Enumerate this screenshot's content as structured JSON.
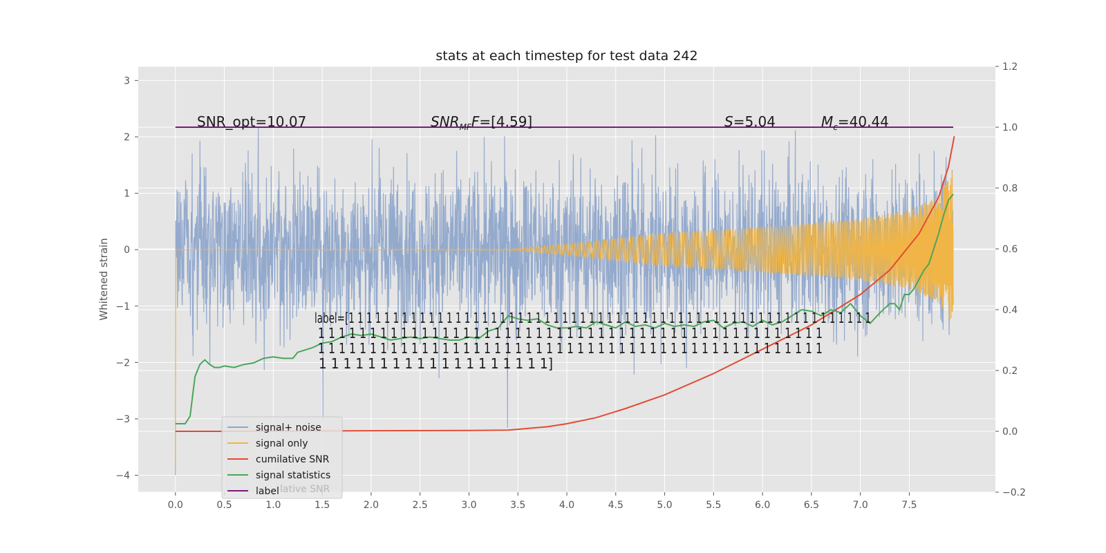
{
  "chart_data": {
    "type": "line",
    "title": "stats at each timestep for test data 242",
    "ylabel": "Whitened strain",
    "xlim": [
      -0.38,
      8.38
    ],
    "ylim": [
      -4.3,
      3.25
    ],
    "y2lim": [
      -0.2,
      1.2
    ],
    "x_ticks": [
      "0.0",
      "0.5",
      "1.0",
      "1.5",
      "2.0",
      "2.5",
      "3.0",
      "3.5",
      "4.0",
      "4.5",
      "5.0",
      "5.5",
      "6.0",
      "6.5",
      "7.0",
      "7.5"
    ],
    "y_ticks": [
      "3",
      "2",
      "1",
      "0",
      "−1",
      "−2",
      "−3",
      "−4"
    ],
    "y2_ticks": [
      "1.2",
      "1.0",
      "0.8",
      "0.6",
      "0.4",
      "0.2",
      "0.0",
      "−0.2"
    ],
    "grid": true,
    "legend_position": "lower-left",
    "colors": {
      "plot_background": "#e5e5e5",
      "grid": "#ffffff",
      "noise": "#8fa6cb",
      "signal": "#f0b546",
      "cumulative_snr": "#e24a33",
      "statistics": "#4aa55a",
      "label": "#7a1a7a"
    },
    "annotations": {
      "snr_opt": "SNR_opt=10.07",
      "snr_mf_name": "SNR",
      "snr_mf_sub": "MF",
      "snr_mf_value": "=[4.59]",
      "s_name": "S",
      "s_value": "=5.04",
      "mc_name": "M",
      "mc_sub": "c",
      "mc_value": "=40.44"
    },
    "label_text": [
      "label=[1 1 1 1 1 1 1 1 1 1 1 1 1 1 1 1 1 1 1 1 1 1 1 1 1 1 1 1 1 1 1 1 1 1 1 1 1 1 1 1 1 1 1 1 1 1 1 1 1 1 1 1 1 1 1 1 1 1 1",
      " 1 1 1 1 1 1 1 1 1 1 1 1 1 1 1 1 1 1 1 1 1 1 1 1 1 1 1 1 1 1 1 1 1 1 1 1 1 1 1 1 1 1 1 1 1 1 1 1 1",
      " 1 1 1 1 1 1 1 1 1 1 1 1 1 1 1 1 1 1 1 1 1 1 1 1 1 1 1 1 1 1 1 1 1 1 1 1 1 1 1 1 1 1 1 1 1 1 1 1 1",
      " 1 1 1 1 1 1 1 1 1 1 1 1 1 1 1 1 1 1 1]"
    ],
    "series": [
      {
        "name": "signal+ noise",
        "axis": "left",
        "note": "whitened noisy strain, amplitude about ±1.5 with spikes to ±2.9",
        "y_range": [
          -4.05,
          2.9
        ]
      },
      {
        "name": "signal only",
        "axis": "left",
        "note": "chirp with growing amplitude",
        "envelope": {
          "x": [
            0,
            3.4,
            4.0,
            5.0,
            6.0,
            7.0,
            7.5,
            7.8,
            7.95
          ],
          "y": [
            0,
            0.01,
            0.1,
            0.3,
            0.4,
            0.55,
            0.7,
            0.95,
            1.4
          ]
        }
      },
      {
        "name": "cumilative SNR",
        "axis": "right",
        "x": [
          0,
          0.5,
          1.0,
          2.0,
          3.0,
          3.4,
          3.8,
          4.0,
          4.3,
          4.6,
          5.0,
          5.5,
          6.0,
          6.5,
          7.0,
          7.3,
          7.6,
          7.8,
          7.9,
          7.96
        ],
        "y": [
          0.0,
          0.0,
          0.001,
          0.002,
          0.003,
          0.004,
          0.015,
          0.025,
          0.045,
          0.075,
          0.12,
          0.19,
          0.27,
          0.35,
          0.45,
          0.53,
          0.65,
          0.77,
          0.87,
          0.97
        ]
      },
      {
        "name": "signal statistics",
        "axis": "right",
        "x": [
          0,
          0.05,
          0.1,
          0.15,
          0.2,
          0.25,
          0.3,
          0.35,
          0.4,
          0.45,
          0.5,
          0.6,
          0.7,
          0.8,
          0.9,
          1.0,
          1.1,
          1.2,
          1.25,
          1.3,
          1.4,
          1.5,
          1.6,
          1.7,
          1.8,
          1.9,
          2.0,
          2.1,
          2.2,
          2.3,
          2.4,
          2.5,
          2.6,
          2.7,
          2.8,
          2.9,
          3.0,
          3.1,
          3.2,
          3.3,
          3.4,
          3.5,
          3.6,
          3.7,
          3.8,
          3.9,
          4.0,
          4.1,
          4.2,
          4.3,
          4.4,
          4.5,
          4.6,
          4.7,
          4.8,
          4.9,
          5.0,
          5.1,
          5.2,
          5.3,
          5.4,
          5.5,
          5.6,
          5.7,
          5.8,
          5.9,
          6.0,
          6.1,
          6.2,
          6.3,
          6.4,
          6.5,
          6.6,
          6.7,
          6.8,
          6.9,
          7.0,
          7.1,
          7.2,
          7.3,
          7.35,
          7.4,
          7.45,
          7.5,
          7.55,
          7.6,
          7.65,
          7.7,
          7.75,
          7.8,
          7.85,
          7.9,
          7.95
        ],
        "y": [
          0.025,
          0.025,
          0.025,
          0.05,
          0.18,
          0.22,
          0.235,
          0.22,
          0.21,
          0.21,
          0.215,
          0.21,
          0.22,
          0.225,
          0.24,
          0.245,
          0.24,
          0.24,
          0.26,
          0.265,
          0.275,
          0.29,
          0.295,
          0.31,
          0.32,
          0.315,
          0.32,
          0.31,
          0.3,
          0.305,
          0.31,
          0.305,
          0.31,
          0.305,
          0.3,
          0.3,
          0.31,
          0.305,
          0.33,
          0.34,
          0.38,
          0.37,
          0.365,
          0.37,
          0.35,
          0.34,
          0.34,
          0.345,
          0.34,
          0.36,
          0.35,
          0.34,
          0.36,
          0.345,
          0.35,
          0.34,
          0.355,
          0.345,
          0.35,
          0.345,
          0.36,
          0.365,
          0.34,
          0.355,
          0.36,
          0.345,
          0.365,
          0.35,
          0.36,
          0.38,
          0.4,
          0.395,
          0.38,
          0.4,
          0.39,
          0.42,
          0.38,
          0.355,
          0.39,
          0.42,
          0.42,
          0.4,
          0.45,
          0.45,
          0.47,
          0.5,
          0.53,
          0.55,
          0.6,
          0.65,
          0.71,
          0.76,
          0.78
        ]
      },
      {
        "name": "label",
        "axis": "right",
        "x": [
          0,
          7.95
        ],
        "y": [
          1.0,
          1.0
        ]
      }
    ],
    "legend": [
      "signal+ noise",
      "signal only",
      "cumilative SNR",
      "signal statistics",
      "label"
    ],
    "legend_shadow_text": "lative SNR"
  }
}
